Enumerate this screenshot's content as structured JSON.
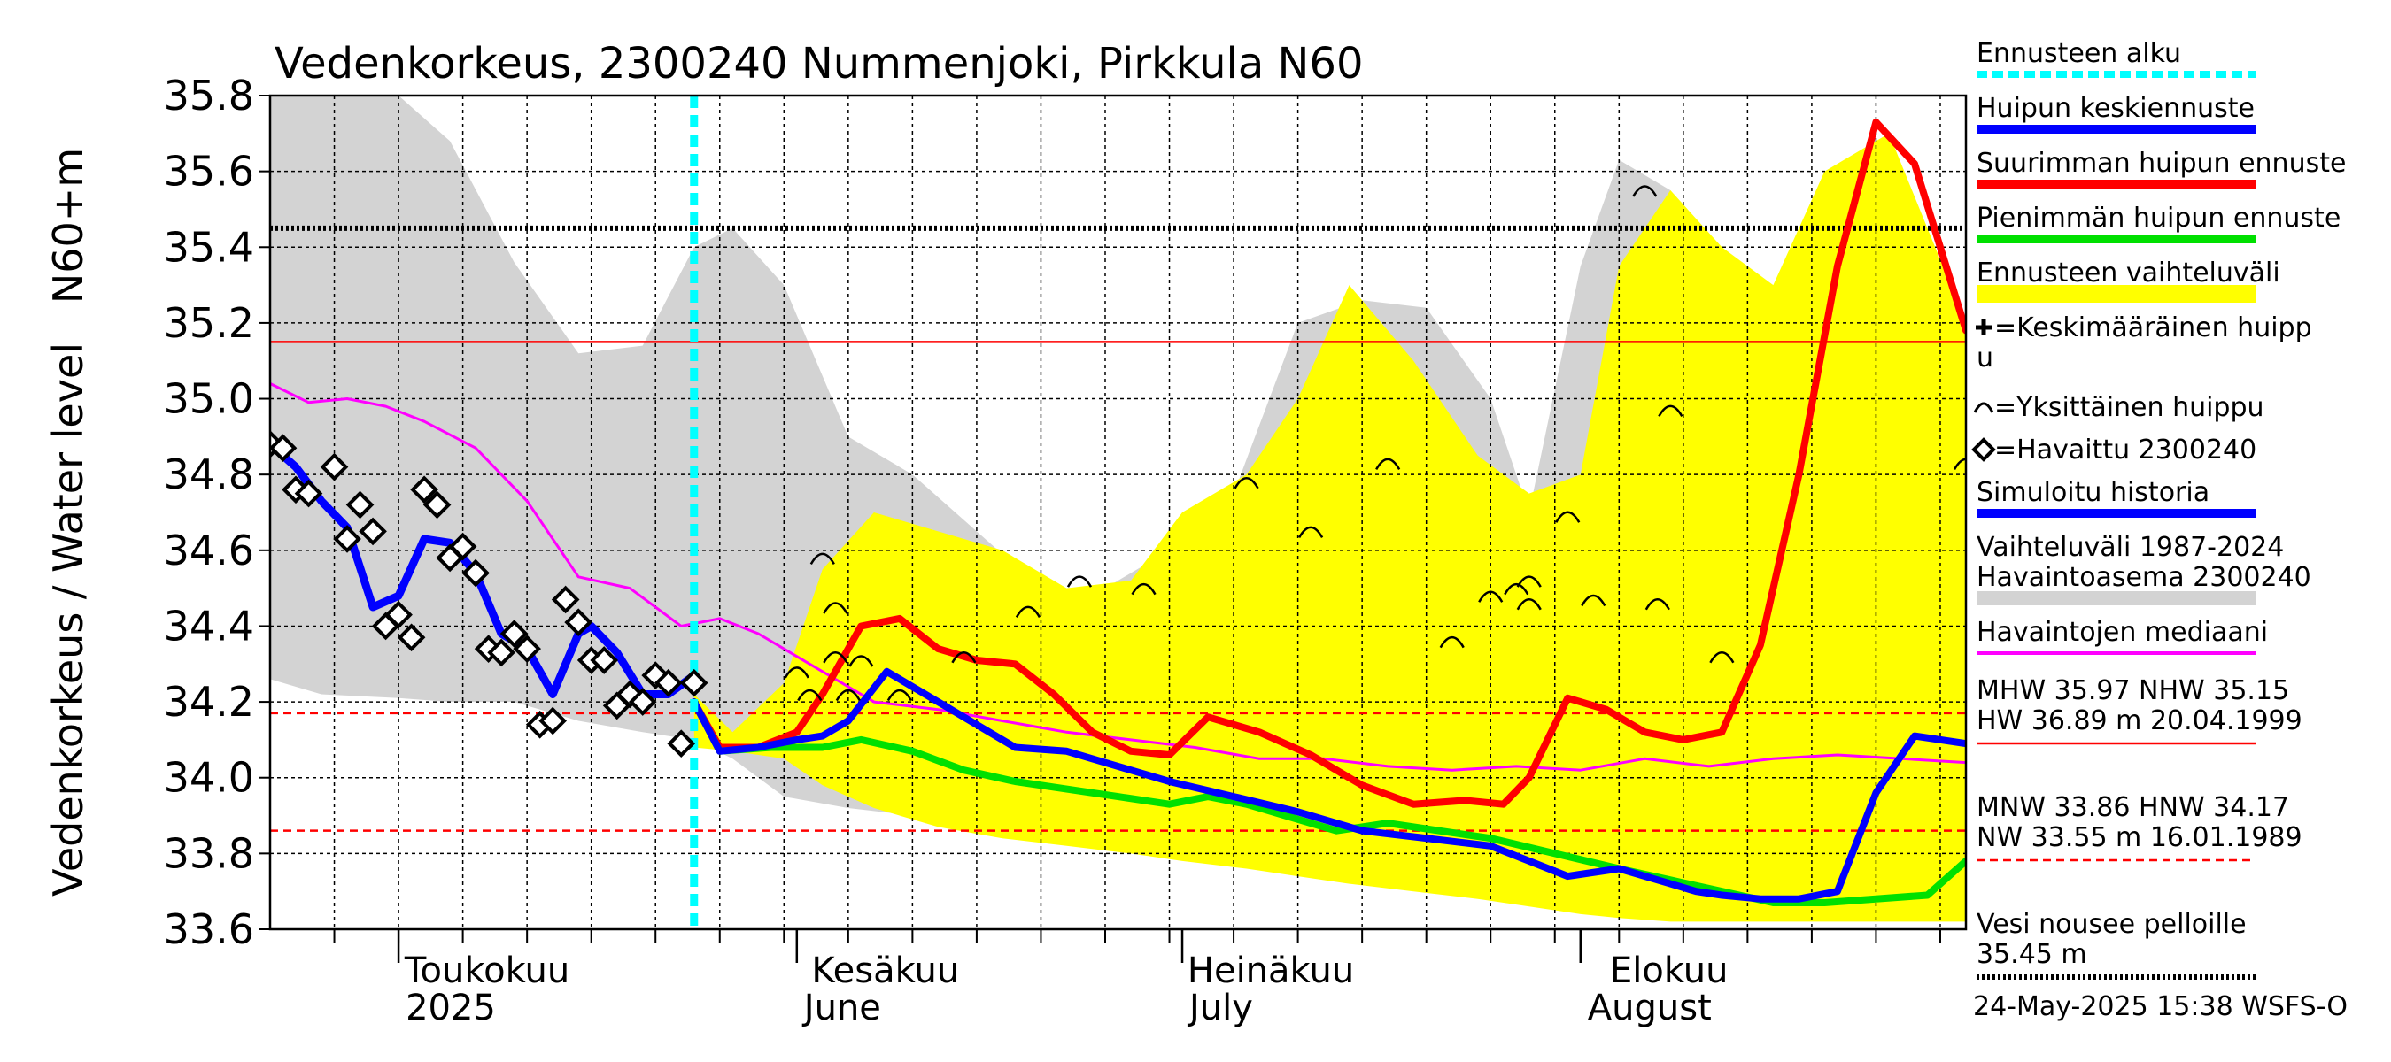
{
  "title": "Vedenkorkeus, 2300240 Nummenjoki, Pirkkula N60",
  "ylabel_line1": "N60+m",
  "ylabel_line2": "Vedenkorkeus / Water level",
  "footer": "24-May-2025 15:38 WSFS-O",
  "colors": {
    "history_band": "#d3d3d3",
    "forecast_band": "#ffff00",
    "mean_forecast": "#0000ff",
    "max_forecast": "#ff0000",
    "min_forecast": "#00e000",
    "median": "#ff00ff",
    "forecast_start": "#00ffff",
    "simulated_history": "#0000ff"
  },
  "chart_data": {
    "type": "line",
    "ylim": [
      33.6,
      35.8
    ],
    "yticks": [
      33.6,
      33.8,
      34.0,
      34.2,
      34.4,
      34.6,
      34.8,
      35.0,
      35.2,
      35.4,
      35.6,
      35.8
    ],
    "x_start": "2025-04-21",
    "x_end": "2025-08-31",
    "grid": true,
    "month_labels": [
      {
        "date": "2025-05-01",
        "line1": "Toukokuu",
        "line2": "2025"
      },
      {
        "date": "2025-06-01",
        "line1": "Kesäkuu",
        "line2": "June"
      },
      {
        "date": "2025-07-01",
        "line1": "Heinäkuu",
        "line2": "July"
      },
      {
        "date": "2025-08-01",
        "line1": "Elokuu",
        "line2": "August"
      }
    ],
    "forecast_start": "2025-05-24",
    "reference_lines": [
      {
        "name": "Vesi nousee pelloille",
        "value": 35.45,
        "style": "dotted-black"
      },
      {
        "name": "NHW",
        "value": 35.15,
        "style": "solid-red"
      },
      {
        "name": "HNW",
        "value": 34.17,
        "style": "dashed-red"
      },
      {
        "name": "MNW",
        "value": 33.86,
        "style": "dashed-red"
      }
    ],
    "history_band": {
      "dates": [
        "2025-04-21",
        "2025-04-25",
        "2025-05-01",
        "2025-05-05",
        "2025-05-10",
        "2025-05-15",
        "2025-05-20",
        "2025-05-24",
        "2025-05-27",
        "2025-05-31",
        "2025-06-05",
        "2025-06-10",
        "2025-06-15",
        "2025-06-20",
        "2025-06-25",
        "2025-06-30",
        "2025-07-05",
        "2025-07-10",
        "2025-07-15",
        "2025-07-20",
        "2025-07-25",
        "2025-07-28",
        "2025-08-01",
        "2025-08-04",
        "2025-08-08",
        "2025-08-12",
        "2025-08-16",
        "2025-08-20",
        "2025-08-25",
        "2025-08-31"
      ],
      "upper": [
        35.8,
        35.8,
        35.8,
        35.68,
        35.36,
        35.12,
        35.14,
        35.4,
        35.45,
        35.3,
        34.9,
        34.8,
        34.65,
        34.5,
        34.5,
        34.6,
        34.75,
        35.2,
        35.26,
        35.24,
        35.0,
        34.7,
        35.35,
        35.63,
        35.55,
        35.35,
        35.2,
        35.3,
        35.22,
        35.0
      ],
      "lower": [
        34.26,
        34.22,
        34.21,
        34.2,
        34.2,
        34.15,
        34.12,
        34.1,
        34.05,
        33.95,
        33.92,
        33.9,
        33.89,
        33.88,
        33.86,
        33.84,
        33.82,
        33.79,
        33.77,
        33.75,
        33.73,
        33.71,
        33.7,
        33.69,
        33.68,
        33.68,
        33.68,
        33.69,
        33.7,
        33.7
      ]
    },
    "forecast_band": {
      "dates": [
        "2025-05-24",
        "2025-05-27",
        "2025-05-31",
        "2025-06-03",
        "2025-06-07",
        "2025-06-12",
        "2025-06-17",
        "2025-06-22",
        "2025-06-27",
        "2025-07-01",
        "2025-07-06",
        "2025-07-10",
        "2025-07-14",
        "2025-07-19",
        "2025-07-24",
        "2025-07-28",
        "2025-08-01",
        "2025-08-04",
        "2025-08-08",
        "2025-08-12",
        "2025-08-16",
        "2025-08-20",
        "2025-08-25",
        "2025-08-31"
      ],
      "upper": [
        34.22,
        34.12,
        34.25,
        34.55,
        34.7,
        34.65,
        34.6,
        34.5,
        34.52,
        34.7,
        34.8,
        35.0,
        35.3,
        35.1,
        34.85,
        34.75,
        34.8,
        35.35,
        35.55,
        35.4,
        35.3,
        35.6,
        35.7,
        35.2
      ],
      "lower": [
        34.08,
        34.07,
        34.05,
        33.98,
        33.92,
        33.87,
        33.84,
        33.82,
        33.8,
        33.78,
        33.76,
        33.74,
        33.72,
        33.7,
        33.68,
        33.66,
        33.64,
        33.63,
        33.62,
        33.62,
        33.62,
        33.62,
        33.62,
        33.62
      ]
    },
    "series": [
      {
        "name": "Huipun keskiennuste",
        "style": "mean",
        "x": [
          "2025-05-24",
          "2025-05-26",
          "2025-05-29",
          "2025-06-01",
          "2025-06-03",
          "2025-06-05",
          "2025-06-08",
          "2025-06-12",
          "2025-06-15",
          "2025-06-18",
          "2025-06-22",
          "2025-06-26",
          "2025-06-30",
          "2025-07-05",
          "2025-07-10",
          "2025-07-15",
          "2025-07-20",
          "2025-07-25",
          "2025-07-28",
          "2025-07-31",
          "2025-08-04",
          "2025-08-08",
          "2025-08-10",
          "2025-08-12",
          "2025-08-15",
          "2025-08-18",
          "2025-08-21",
          "2025-08-24",
          "2025-08-27",
          "2025-08-31"
        ],
        "y": [
          34.2,
          34.07,
          34.08,
          34.1,
          34.11,
          34.15,
          34.28,
          34.2,
          34.14,
          34.08,
          34.07,
          34.03,
          33.99,
          33.95,
          33.91,
          33.86,
          33.84,
          33.82,
          33.78,
          33.74,
          33.76,
          33.72,
          33.7,
          33.69,
          33.68,
          33.68,
          33.7,
          33.96,
          34.11,
          34.09
        ]
      },
      {
        "name": "Suurimman huipun ennuste",
        "style": "max",
        "x": [
          "2025-05-24",
          "2025-05-26",
          "2025-05-29",
          "2025-06-01",
          "2025-06-03",
          "2025-06-06",
          "2025-06-09",
          "2025-06-12",
          "2025-06-15",
          "2025-06-18",
          "2025-06-21",
          "2025-06-24",
          "2025-06-27",
          "2025-06-30",
          "2025-07-03",
          "2025-07-07",
          "2025-07-11",
          "2025-07-15",
          "2025-07-19",
          "2025-07-23",
          "2025-07-26",
          "2025-07-28",
          "2025-07-31",
          "2025-08-03",
          "2025-08-06",
          "2025-08-09",
          "2025-08-12",
          "2025-08-15",
          "2025-08-18",
          "2025-08-21",
          "2025-08-24",
          "2025-08-27",
          "2025-08-31"
        ],
        "y": [
          34.2,
          34.08,
          34.08,
          34.12,
          34.22,
          34.4,
          34.42,
          34.34,
          34.31,
          34.3,
          34.22,
          34.12,
          34.07,
          34.06,
          34.16,
          34.12,
          34.06,
          33.98,
          33.93,
          33.94,
          33.93,
          34.0,
          34.21,
          34.18,
          34.12,
          34.1,
          34.12,
          34.35,
          34.8,
          35.35,
          35.73,
          35.62,
          35.18
        ]
      },
      {
        "name": "Pienimmän huipun ennuste",
        "style": "min",
        "x": [
          "2025-05-24",
          "2025-05-26",
          "2025-05-30",
          "2025-06-03",
          "2025-06-06",
          "2025-06-10",
          "2025-06-14",
          "2025-06-18",
          "2025-06-22",
          "2025-06-26",
          "2025-06-30",
          "2025-07-03",
          "2025-07-06",
          "2025-07-09",
          "2025-07-13",
          "2025-07-17",
          "2025-07-21",
          "2025-07-25",
          "2025-07-30",
          "2025-08-04",
          "2025-08-08",
          "2025-08-12",
          "2025-08-16",
          "2025-08-20",
          "2025-08-24",
          "2025-08-28",
          "2025-08-31"
        ],
        "y": [
          34.2,
          34.07,
          34.08,
          34.08,
          34.1,
          34.07,
          34.02,
          33.99,
          33.97,
          33.95,
          33.93,
          33.95,
          33.93,
          33.9,
          33.86,
          33.88,
          33.86,
          33.84,
          33.8,
          33.76,
          33.73,
          33.7,
          33.67,
          33.67,
          33.68,
          33.69,
          33.78
        ]
      },
      {
        "name": "Havaintojen mediaani",
        "style": "median",
        "x": [
          "2025-04-21",
          "2025-04-24",
          "2025-04-27",
          "2025-04-30",
          "2025-05-03",
          "2025-05-07",
          "2025-05-11",
          "2025-05-15",
          "2025-05-19",
          "2025-05-23",
          "2025-05-26",
          "2025-05-29",
          "2025-06-02",
          "2025-06-07",
          "2025-06-12",
          "2025-06-17",
          "2025-06-22",
          "2025-06-27",
          "2025-07-02",
          "2025-07-07",
          "2025-07-12",
          "2025-07-17",
          "2025-07-22",
          "2025-07-27",
          "2025-08-01",
          "2025-08-06",
          "2025-08-11",
          "2025-08-16",
          "2025-08-21",
          "2025-08-26",
          "2025-08-31"
        ],
        "y": [
          35.04,
          34.99,
          35.0,
          34.98,
          34.94,
          34.87,
          34.73,
          34.53,
          34.5,
          34.4,
          34.42,
          34.38,
          34.3,
          34.2,
          34.18,
          34.15,
          34.12,
          34.1,
          34.08,
          34.05,
          34.05,
          34.03,
          34.02,
          34.03,
          34.02,
          34.05,
          34.03,
          34.05,
          34.06,
          34.05,
          34.04
        ]
      },
      {
        "name": "Simuloitu historia",
        "style": "sim",
        "x": [
          "2025-04-21",
          "2025-04-23",
          "2025-04-25",
          "2025-04-27",
          "2025-04-29",
          "2025-05-01",
          "2025-05-03",
          "2025-05-05",
          "2025-05-07",
          "2025-05-09",
          "2025-05-11",
          "2025-05-13",
          "2025-05-15",
          "2025-05-16",
          "2025-05-18",
          "2025-05-20",
          "2025-05-22",
          "2025-05-24"
        ],
        "y": [
          34.88,
          34.82,
          34.73,
          34.66,
          34.45,
          34.48,
          34.63,
          34.62,
          34.54,
          34.38,
          34.34,
          34.22,
          34.38,
          34.4,
          34.33,
          34.22,
          34.22,
          34.27
        ]
      }
    ],
    "observed": {
      "name": "Havaittu 2300240",
      "x": [
        "2025-04-21",
        "2025-04-22",
        "2025-04-23",
        "2025-04-24",
        "2025-04-26",
        "2025-04-27",
        "2025-04-28",
        "2025-04-29",
        "2025-04-30",
        "2025-05-01",
        "2025-05-02",
        "2025-05-03",
        "2025-05-04",
        "2025-05-05",
        "2025-05-06",
        "2025-05-07",
        "2025-05-08",
        "2025-05-09",
        "2025-05-10",
        "2025-05-11",
        "2025-05-12",
        "2025-05-13",
        "2025-05-14",
        "2025-05-15",
        "2025-05-16",
        "2025-05-17",
        "2025-05-18",
        "2025-05-19",
        "2025-05-20",
        "2025-05-21",
        "2025-05-22",
        "2025-05-23",
        "2025-05-24"
      ],
      "y": [
        34.88,
        34.87,
        34.76,
        34.75,
        34.82,
        34.63,
        34.72,
        34.65,
        34.4,
        34.43,
        34.37,
        34.76,
        34.72,
        34.58,
        34.61,
        34.54,
        34.34,
        34.33,
        34.38,
        34.34,
        34.14,
        34.15,
        34.47,
        34.41,
        34.31,
        34.31,
        34.19,
        34.22,
        34.2,
        34.27,
        34.25,
        34.09,
        34.25
      ]
    },
    "peak_marks": {
      "x": [
        "2025-06-01",
        "2025-06-02",
        "2025-06-03",
        "2025-06-04",
        "2025-06-04",
        "2025-06-05",
        "2025-06-06",
        "2025-06-09",
        "2025-06-14",
        "2025-06-19",
        "2025-06-23",
        "2025-06-28",
        "2025-07-06",
        "2025-07-11",
        "2025-07-17",
        "2025-07-22",
        "2025-07-25",
        "2025-07-27",
        "2025-07-28",
        "2025-07-28",
        "2025-07-31",
        "2025-08-02",
        "2025-08-06",
        "2025-08-07",
        "2025-08-08",
        "2025-08-12",
        "2025-08-31"
      ],
      "y": [
        34.28,
        34.22,
        34.58,
        34.45,
        34.32,
        34.22,
        34.31,
        34.22,
        34.32,
        34.44,
        34.52,
        34.5,
        34.78,
        34.65,
        34.83,
        34.36,
        34.48,
        34.5,
        34.46,
        34.52,
        34.69,
        34.47,
        35.55,
        34.46,
        34.97,
        34.32,
        34.83
      ]
    },
    "legend": [
      {
        "label": "Ennusteen alku",
        "kind": "dashed-cyan"
      },
      {
        "label": "Huipun keskiennuste",
        "kind": "blue"
      },
      {
        "label": "Suurimman huipun ennuste",
        "kind": "red"
      },
      {
        "label": "Pienimmän huipun ennuste",
        "kind": "green"
      },
      {
        "label": "Ennusteen vaihteluväli",
        "kind": "yellow"
      },
      {
        "label": "=Keskimääräinen huipp",
        "label2": "u",
        "kind": "plus"
      },
      {
        "label": "=Yksittäinen huippu",
        "kind": "arc"
      },
      {
        "label": "=Havaittu 2300240",
        "kind": "diamond"
      },
      {
        "label": "Simuloitu historia",
        "kind": "blue"
      },
      {
        "label": "Vaihteluväli 1987-2024",
        "label2": "Havaintoasema 2300240",
        "kind": "gray"
      },
      {
        "label": "Havaintojen mediaani",
        "kind": "magenta"
      }
    ],
    "stats": [
      {
        "line1": "MHW  35.97 NHW  35.15",
        "line2": "HW  36.89 m 20.04.1999",
        "kind": "solid-red"
      },
      {
        "line1": "MNW  33.86 HNW  34.17",
        "line2": "NW  33.55 m 16.01.1989",
        "kind": "dashed-red"
      },
      {
        "line1": "Vesi nousee pelloille",
        "line2": "35.45 m",
        "kind": "dotted-black"
      }
    ]
  }
}
